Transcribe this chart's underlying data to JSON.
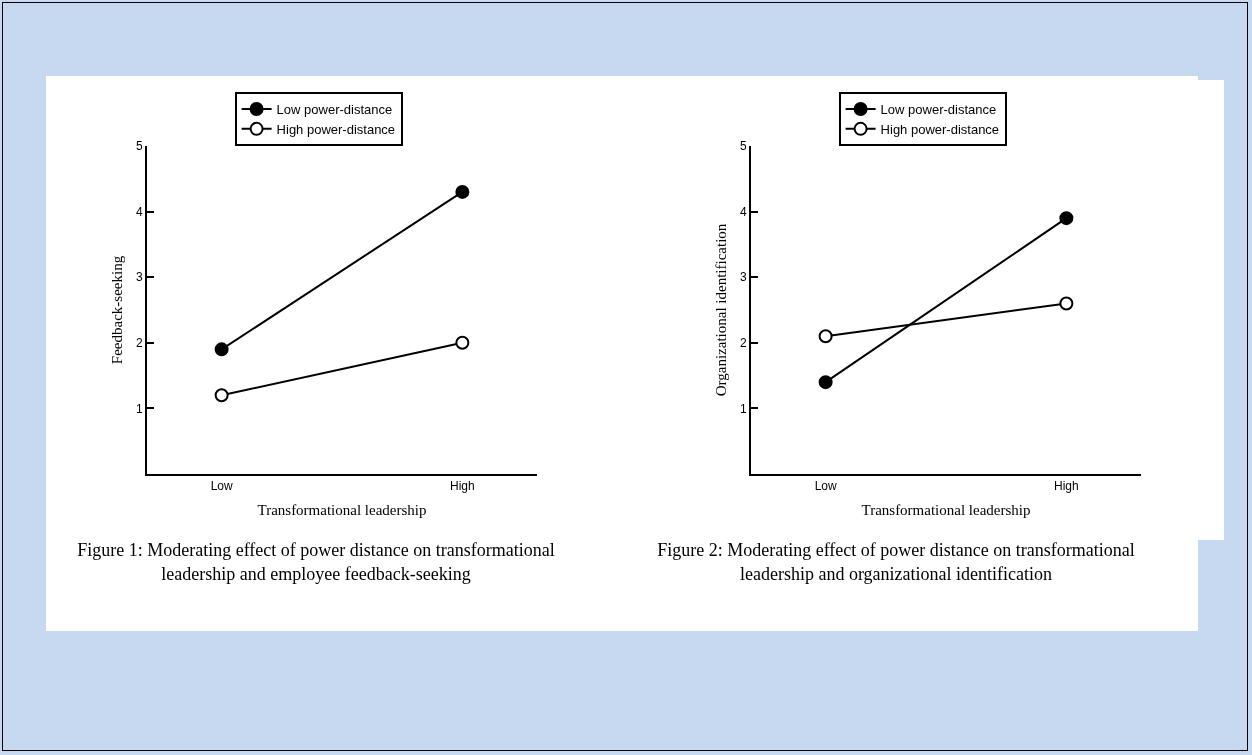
{
  "chart_data": [
    {
      "type": "line",
      "categories": [
        "Low",
        "High"
      ],
      "xlabel": "Transformational leadership",
      "ylabel": "Feedback-seeking",
      "ylim": [
        0,
        5
      ],
      "yticks": [
        1,
        2,
        3,
        4,
        5
      ],
      "grid": false,
      "legend": "top",
      "marker": "circle",
      "line_style": "solid",
      "series": [
        {
          "name": "Low power-distance",
          "color": "#000000",
          "values": [
            1.9,
            4.3
          ]
        },
        {
          "name": "High power-distance",
          "color": "#000000",
          "values": [
            1.2,
            2.0
          ]
        }
      ],
      "annotations": [
        "Figure 1: Moderating effect of power distance on transformational leadership and employee feedback-seeking"
      ]
    },
    {
      "type": "line",
      "categories": [
        "Low",
        "High"
      ],
      "xlabel": "Transformational leadership",
      "ylabel": "Organizational identification",
      "ylim": [
        0,
        5
      ],
      "yticks": [
        1,
        2,
        3,
        4,
        5
      ],
      "grid": false,
      "legend": "top",
      "marker": "circle",
      "line_style": "solid",
      "series": [
        {
          "name": "Low power-distance",
          "color": "#000000",
          "values": [
            1.4,
            3.9
          ]
        },
        {
          "name": "High power-distance",
          "color": "#000000",
          "values": [
            2.1,
            2.6
          ]
        }
      ],
      "annotations": [
        "Figure 2: Moderating effect of power distance on transformational leadership and organizational identification"
      ]
    }
  ]
}
